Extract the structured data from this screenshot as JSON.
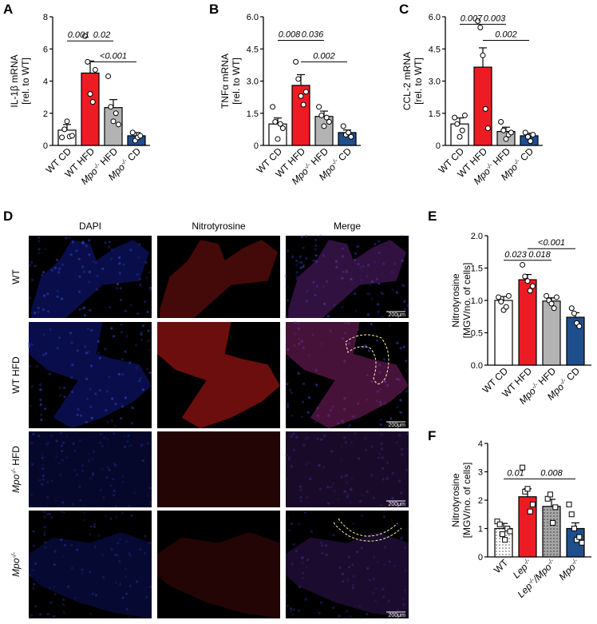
{
  "panel_letters": [
    "A",
    "B",
    "C",
    "D",
    "E",
    "F"
  ],
  "chart_data": [
    {
      "panel": "A",
      "type": "bar",
      "ylabel": [
        "IL-1β mRNA",
        "[rel. to WT]"
      ],
      "ylim": [
        0,
        8
      ],
      "yticks": [
        "0",
        "2",
        "4",
        "6",
        "8"
      ],
      "categories": [
        {
          "main": "WT CD",
          "sup": ""
        },
        {
          "main": "WT HFD",
          "sup": ""
        },
        {
          "main": "Mpo",
          "sup": "-/-",
          "rest": " HFD"
        },
        {
          "main": "Mpo",
          "sup": "-/-",
          "rest": " CD"
        }
      ],
      "values": [
        0.95,
        4.5,
        2.35,
        0.6
      ],
      "errors": [
        0.35,
        0.75,
        0.5,
        0.2
      ],
      "points": [
        [
          0.5,
          1.0,
          1.5,
          0.55,
          0.6
        ],
        [
          6.8,
          5.2,
          3.2,
          2.7,
          4.7
        ],
        [
          4.3,
          2.4,
          1.5,
          2.0,
          1.3
        ],
        [
          0.8,
          0.3,
          0.5,
          0.6
        ]
      ],
      "colors": [
        "#ffffff",
        "#ed1c24",
        "#b3b3b3",
        "#1f4e8c"
      ],
      "pvalues": [
        {
          "text": "0.001",
          "from": 0,
          "to": 1,
          "y": 6.5
        },
        {
          "text": "0.02",
          "from": 1,
          "to": 2,
          "y": 6.5
        },
        {
          "text": "<0.001",
          "from": 1,
          "to": 3,
          "y": 5.2
        }
      ]
    },
    {
      "panel": "B",
      "type": "bar",
      "ylabel": [
        "TNFα mRNA",
        "[rel. to WT]"
      ],
      "ylim": [
        0,
        6
      ],
      "yticks": [
        "0",
        "1.5",
        "3.0",
        "4.5",
        "6.0"
      ],
      "categories": [
        {
          "main": "WT CD",
          "sup": ""
        },
        {
          "main": "WT HFD",
          "sup": ""
        },
        {
          "main": "Mpo",
          "sup": "-/-",
          "rest": " HFD"
        },
        {
          "main": "Mpo",
          "sup": "-/-",
          "rest": " CD"
        }
      ],
      "values": [
        1.0,
        2.8,
        1.35,
        0.6
      ],
      "errors": [
        0.28,
        0.5,
        0.25,
        0.12
      ],
      "points": [
        [
          1.8,
          1.1,
          0.3,
          1.0,
          0.8
        ],
        [
          3.9,
          3.1,
          2.3,
          1.9,
          2.5
        ],
        [
          1.8,
          1.4,
          0.9,
          1.3,
          1.1
        ],
        [
          0.9,
          0.5,
          0.6,
          0.4
        ]
      ],
      "colors": [
        "#ffffff",
        "#ed1c24",
        "#b3b3b3",
        "#1f4e8c"
      ],
      "pvalues": [
        {
          "text": "0.008",
          "from": 0,
          "to": 1,
          "y": 4.9
        },
        {
          "text": "0.036",
          "from": 1,
          "to": 2,
          "y": 4.9
        },
        {
          "text": "0.002",
          "from": 1,
          "to": 3,
          "y": 3.9
        }
      ]
    },
    {
      "panel": "C",
      "type": "bar",
      "ylabel": [
        "CCL-2 mRNA",
        "[rel. to WT]"
      ],
      "ylim": [
        0,
        6
      ],
      "yticks": [
        "0",
        "1.5",
        "3.0",
        "4.5",
        "6.0"
      ],
      "categories": [
        {
          "main": "WT CD",
          "sup": ""
        },
        {
          "main": "WT HFD",
          "sup": ""
        },
        {
          "main": "Mpo",
          "sup": "-/-",
          "rest": " HFD"
        },
        {
          "main": "Mpo",
          "sup": "-/-",
          "rest": " CD"
        }
      ],
      "values": [
        1.0,
        3.65,
        0.65,
        0.45
      ],
      "errors": [
        0.28,
        0.9,
        0.2,
        0.12
      ],
      "points": [
        [
          1.3,
          1.0,
          0.4,
          0.7,
          1.4
        ],
        [
          5.8,
          5.5,
          4.2,
          1.7,
          0.8
        ],
        [
          1.1,
          0.7,
          0.3,
          0.5,
          0.6
        ],
        [
          0.6,
          0.4,
          0.2,
          0.5
        ]
      ],
      "colors": [
        "#ffffff",
        "#ed1c24",
        "#b3b3b3",
        "#1f4e8c"
      ],
      "pvalues": [
        {
          "text": "0.007",
          "from": 0,
          "to": 1,
          "y": 5.65
        },
        {
          "text": "0.003",
          "from": 1,
          "to": 2,
          "y": 5.65
        },
        {
          "text": "0.002",
          "from": 1,
          "to": 3,
          "y": 4.9
        }
      ]
    },
    {
      "panel": "E",
      "type": "bar",
      "ylabel": [
        "Nitrotyrosine",
        "[MGV/no. of cells]"
      ],
      "ylim": [
        0,
        2
      ],
      "yticks": [
        "0.0",
        "0.5",
        "1.0",
        "1.5",
        "2.0"
      ],
      "categories": [
        {
          "main": "WT CD",
          "sup": ""
        },
        {
          "main": "WT HFD",
          "sup": ""
        },
        {
          "main": "Mpo",
          "sup": "-/-",
          "rest": " HFD"
        },
        {
          "main": "Mpo",
          "sup": "-/-",
          "rest": " CD"
        }
      ],
      "values": [
        1.0,
        1.32,
        0.99,
        0.74
      ],
      "errors": [
        0.06,
        0.08,
        0.05,
        0.07
      ],
      "points": [
        [
          1.05,
          0.98,
          0.85,
          0.9,
          1.07
        ],
        [
          1.55,
          1.37,
          1.3,
          1.15,
          1.22
        ],
        [
          1.07,
          1.0,
          0.95,
          0.88,
          1.05
        ],
        [
          0.88,
          0.8,
          0.65,
          0.6
        ]
      ],
      "colors": [
        "#ffffff",
        "#ed1c24",
        "#b3b3b3",
        "#1f4e8c"
      ],
      "pvalues": [
        {
          "text": "0.023",
          "from": 0,
          "to": 1,
          "y": 1.62
        },
        {
          "text": "0.018",
          "from": 1,
          "to": 2,
          "y": 1.62
        },
        {
          "text": "<0.001",
          "from": 1,
          "to": 3,
          "y": 1.8
        }
      ]
    },
    {
      "panel": "F",
      "type": "bar",
      "ylabel": [
        "Nitrotyrosine",
        "[MGV/no. of cells]"
      ],
      "ylim": [
        0,
        4
      ],
      "yticks": [
        "0",
        "1",
        "2",
        "3",
        "4"
      ],
      "categories": [
        {
          "main": "WT",
          "sup": ""
        },
        {
          "main": "Lep",
          "sup": "-/-"
        },
        {
          "main": "Lep",
          "sup": "-/-",
          "rest": "/Mpo",
          "sup2": "-/-"
        },
        {
          "main": "Mpo",
          "sup": "-/-"
        }
      ],
      "values": [
        1.0,
        2.12,
        1.78,
        1.0
      ],
      "errors": [
        0.18,
        0.28,
        0.25,
        0.2
      ],
      "points": [
        [
          1.25,
          1.15,
          0.8,
          0.6,
          1.0,
          0.9
        ],
        [
          3.15,
          2.3,
          2.4,
          1.6,
          1.85
        ],
        [
          2.05,
          2.2,
          1.2,
          1.75
        ],
        [
          1.85,
          1.5,
          1.0,
          0.6,
          0.7,
          0.5
        ]
      ],
      "colors": [
        "#ffffff",
        "#ed1c24",
        "#a6a6a6",
        "#1f4e8c"
      ],
      "patterns": [
        "dots",
        "none",
        "dots",
        "none"
      ],
      "markers": "square",
      "pvalues": [
        {
          "text": "0.01",
          "from": 0,
          "to": 1,
          "y": 2.75
        },
        {
          "text": "0.008",
          "from": 1,
          "to": 3,
          "y": 2.75
        }
      ]
    }
  ],
  "micrographs": {
    "columns": [
      "DAPI",
      "Nitrotyrosine",
      "Merge"
    ],
    "rows": [
      {
        "main": "WT",
        "sup": ""
      },
      {
        "main": "WT HFD",
        "sup": ""
      },
      {
        "main": "Mpo",
        "sup": "-/-",
        "rest": " HFD"
      },
      {
        "main": "Mpo",
        "sup": "-/-",
        "rest": ""
      }
    ],
    "scale_bar": "200μm",
    "colors": {
      "dapi": "#1a2be0",
      "nitro": "#c41a1a",
      "bg": "#000000"
    }
  }
}
